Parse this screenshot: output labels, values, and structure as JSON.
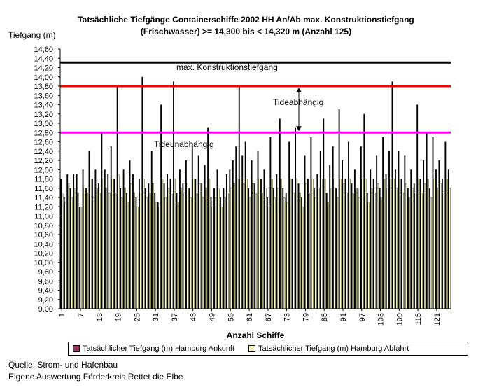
{
  "chart_data": {
    "type": "bar",
    "title_line1": "Tatsächliche Tiefgänge Containerschiffe 2002 HH An/Ab max. Konstruktionstiefgang",
    "title_line2": "(Frischwasser) >= 14,300 bis < 14,320 m (Anzahl 125)",
    "ylabel": "Tiefgang (m)",
    "xlabel": "Anzahl Schiffe",
    "ylim": [
      9.0,
      14.6
    ],
    "ytick_step": 0.2,
    "xticks": [
      "1",
      "7",
      "13",
      "19",
      "25",
      "31",
      "37",
      "43",
      "49",
      "55",
      "61",
      "67",
      "73",
      "79",
      "85",
      "91",
      "97",
      "103",
      "109",
      "115",
      "121"
    ],
    "series": [
      {
        "name": "Tatsächlicher Tiefgang (m) Hamburg Ankunft",
        "color": "#993366",
        "values": [
          11.8,
          11.4,
          11.9,
          11.6,
          11.9,
          11.9,
          11.2,
          12.0,
          11.6,
          12.4,
          11.8,
          12.0,
          11.7,
          12.8,
          12.0,
          11.9,
          12.5,
          11.8,
          13.8,
          11.6,
          12.0,
          11.5,
          12.2,
          11.9,
          11.4,
          11.8,
          14.0,
          11.6,
          11.7,
          12.4,
          11.5,
          11.3,
          13.4,
          11.7,
          11.9,
          11.8,
          13.9,
          11.5,
          12.0,
          11.7,
          12.2,
          11.6,
          12.5,
          11.8,
          12.3,
          11.7,
          12.1,
          12.9,
          11.4,
          11.6,
          12.0,
          11.4,
          11.6,
          11.9,
          12.0,
          12.2,
          12.5,
          13.8,
          12.3,
          12.6,
          11.6,
          12.2,
          11.7,
          12.4,
          11.8,
          12.0,
          11.4,
          12.7,
          11.6,
          11.9,
          13.1,
          11.6,
          11.5,
          12.6,
          11.8,
          12.9,
          11.7,
          11.4,
          12.3,
          11.8,
          12.7,
          11.6,
          11.9,
          12.4,
          13.1,
          11.5,
          12.1,
          12.5,
          11.6,
          13.3,
          12.2,
          11.8,
          12.6,
          11.7,
          12.0,
          11.6,
          12.5,
          13.2,
          11.5,
          12.0,
          11.8,
          12.3,
          11.6,
          12.7,
          11.9,
          12.4,
          13.9,
          12.0,
          12.4,
          11.8,
          12.3,
          11.6,
          12.0,
          11.7,
          13.4,
          11.8,
          12.2,
          12.8,
          11.6,
          12.7,
          12.0,
          12.2,
          11.8,
          12.6,
          12.0
        ],
        "values2_note": ""
      },
      {
        "name": "Tatsächlicher Tiefgang (m) Hamburg Abfahrt",
        "color": "#ffffcc",
        "values": [
          11.5,
          11.3,
          11.7,
          11.4,
          11.6,
          11.5,
          11.2,
          11.6,
          11.5,
          11.8,
          11.4,
          11.6,
          11.5,
          11.8,
          11.6,
          11.5,
          11.8,
          11.5,
          11.9,
          11.4,
          11.6,
          11.3,
          11.7,
          11.5,
          11.2,
          11.5,
          11.8,
          11.4,
          11.5,
          11.7,
          11.3,
          11.2,
          11.8,
          11.4,
          11.6,
          11.5,
          11.8,
          11.3,
          11.6,
          11.5,
          11.7,
          11.4,
          11.8,
          11.5,
          11.7,
          11.4,
          11.6,
          11.8,
          11.2,
          11.4,
          11.6,
          11.2,
          11.4,
          11.5,
          11.6,
          11.7,
          11.8,
          11.8,
          11.7,
          11.8,
          11.4,
          11.7,
          11.5,
          11.8,
          11.5,
          11.6,
          11.2,
          11.8,
          11.4,
          11.6,
          11.8,
          11.4,
          11.3,
          11.8,
          11.5,
          11.8,
          11.5,
          11.2,
          11.7,
          11.5,
          11.8,
          11.4,
          11.6,
          11.8,
          11.8,
          11.3,
          11.6,
          11.8,
          11.4,
          11.8,
          11.7,
          11.5,
          11.8,
          11.5,
          11.6,
          11.4,
          11.8,
          11.8,
          11.3,
          11.6,
          11.5,
          11.7,
          11.4,
          11.8,
          11.6,
          11.8,
          11.8,
          11.6,
          11.8,
          11.5,
          11.7,
          11.4,
          11.6,
          11.5,
          11.8,
          11.5,
          11.7,
          11.8,
          11.4,
          11.8,
          11.6,
          11.7,
          11.5,
          11.8,
          11.6
        ]
      }
    ],
    "reference_lines": [
      {
        "label": "max. Konstruktionstiefgang",
        "value": 14.31,
        "color": "#000000"
      },
      {
        "label": "",
        "value": 13.8,
        "color": "#ff0000"
      },
      {
        "label": "",
        "value": 12.8,
        "color": "#ff00ff"
      }
    ],
    "annotations": {
      "tide_dependent": "Tideabhängig",
      "tide_independent": "Tideunabhängig"
    },
    "grid": false,
    "legend_position": "bottom"
  },
  "footer": {
    "source_line1": "Quelle: Strom- und Hafenbau",
    "source_line2": "Eigene Auswertung Förderkreis Rettet die Elbe"
  }
}
